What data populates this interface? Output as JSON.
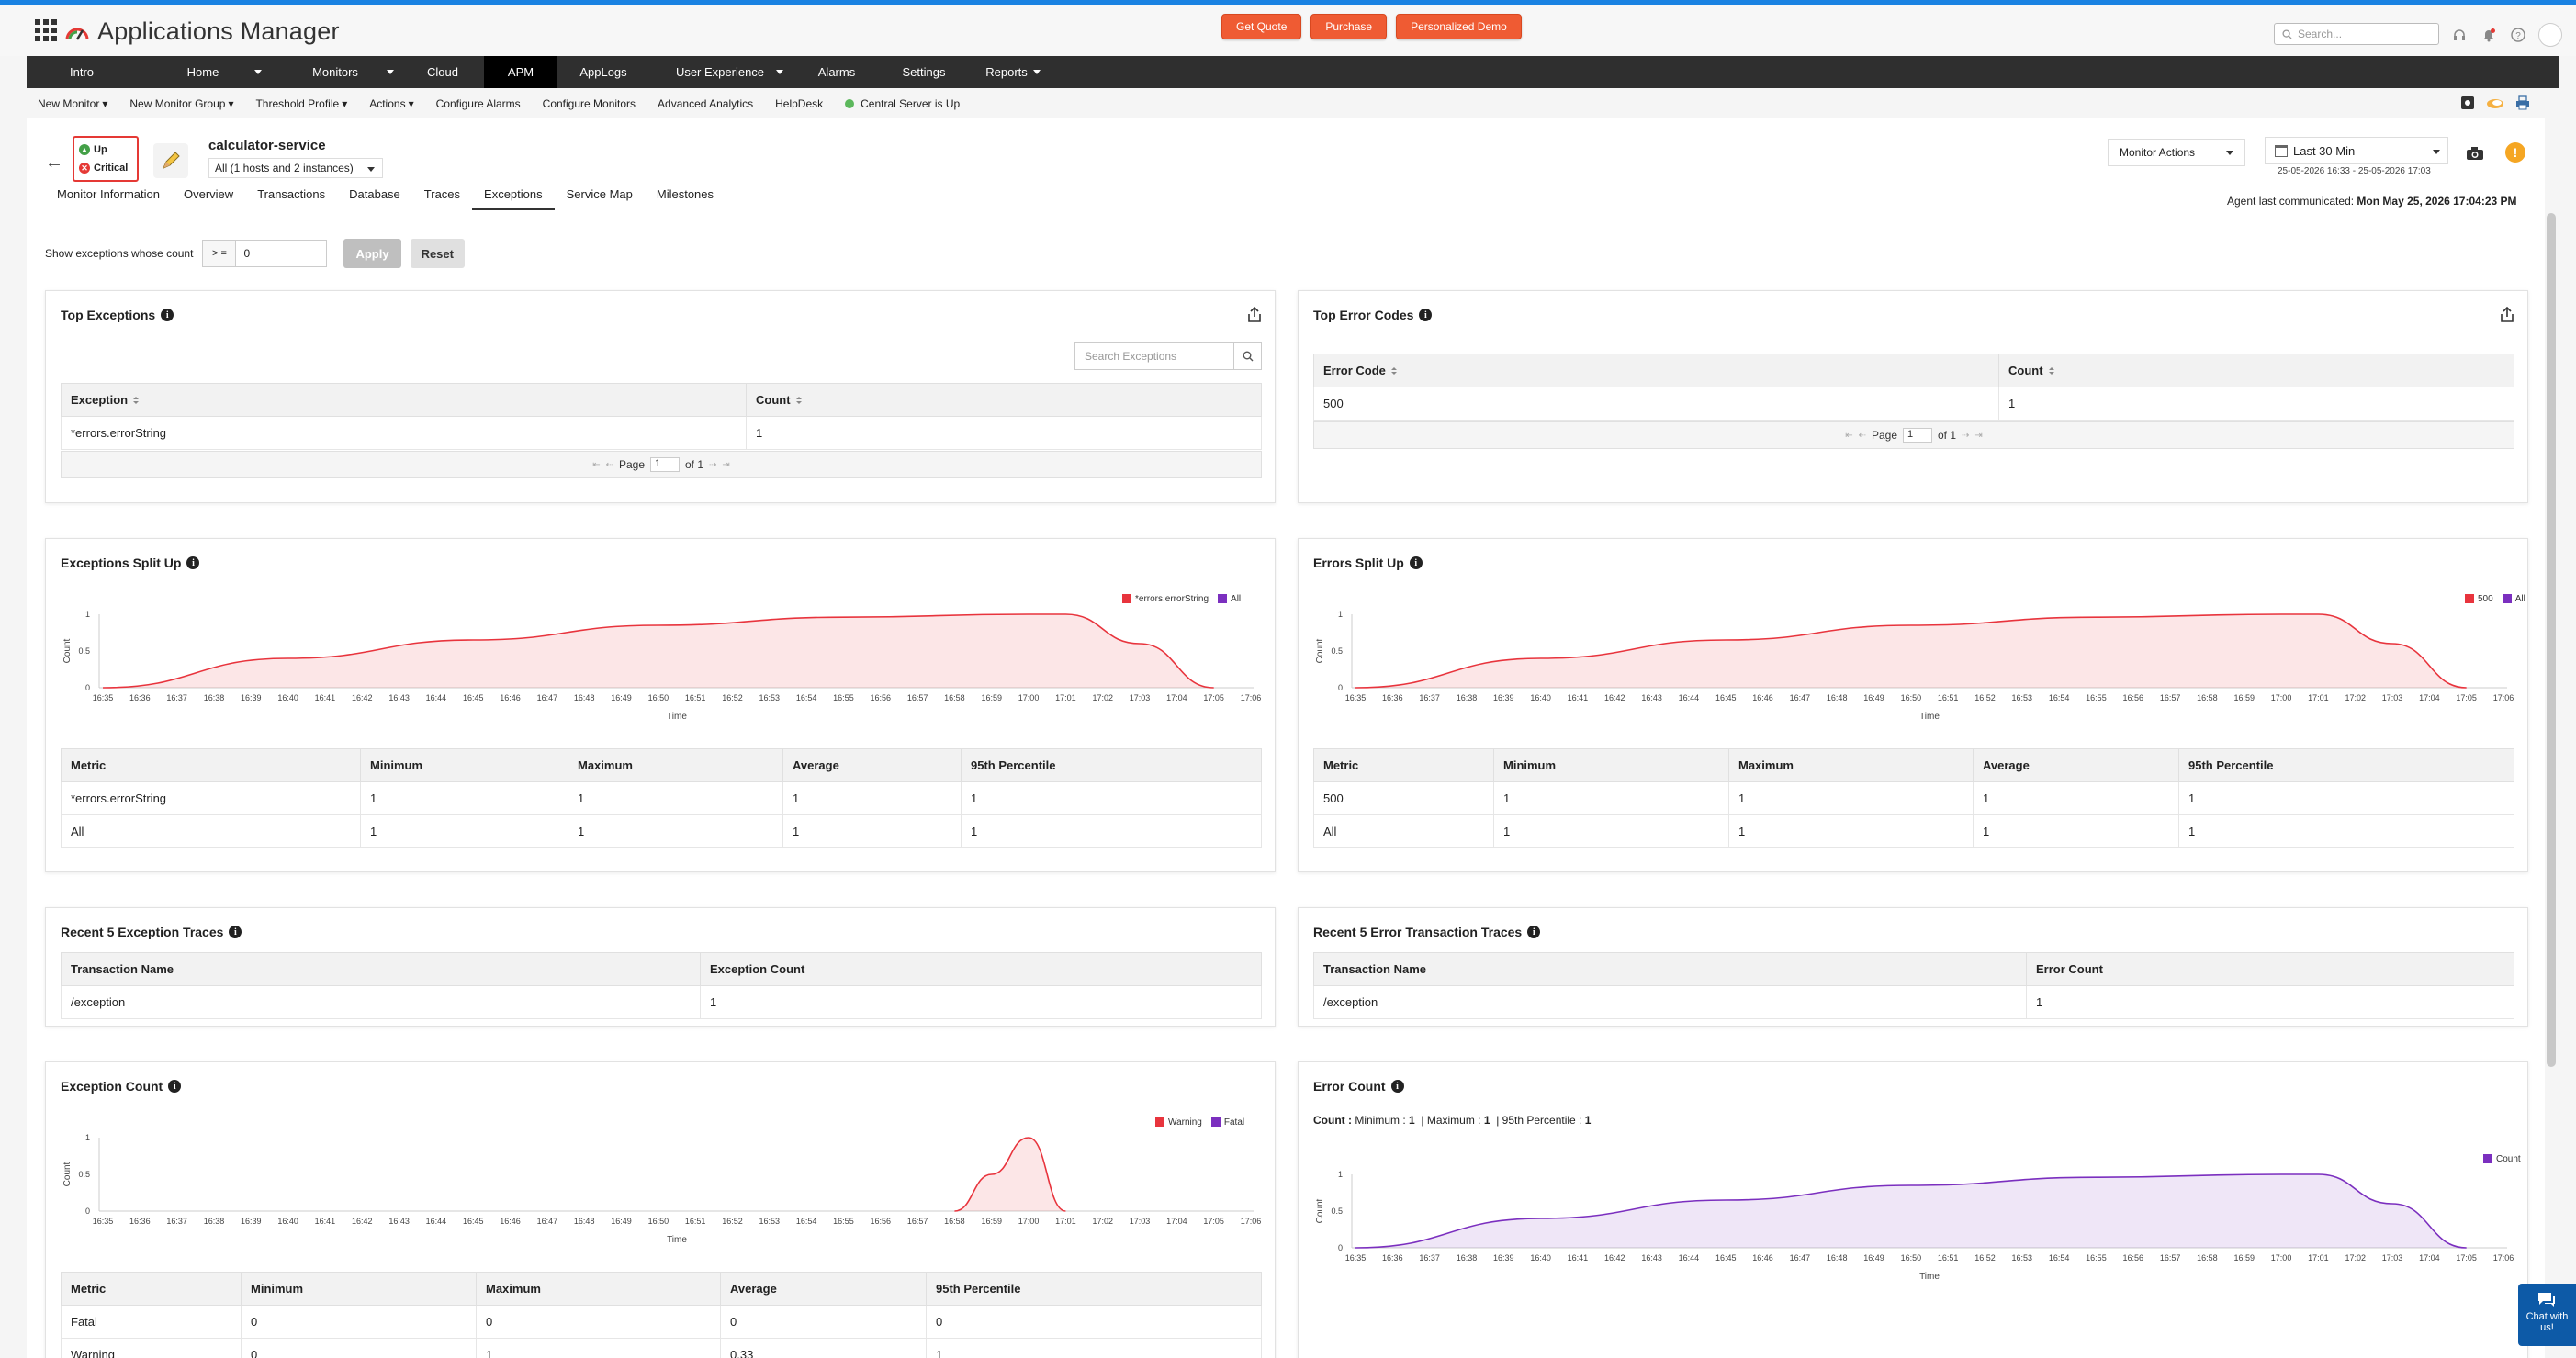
{
  "app": {
    "title": "Applications Manager",
    "search_placeholder": "Search..."
  },
  "header_buttons": [
    "Get Quote",
    "Purchase",
    "Personalized Demo"
  ],
  "nav": [
    {
      "label": "Intro",
      "w": 120,
      "caret": false
    },
    {
      "label": "Home",
      "w": 144,
      "caret": true
    },
    {
      "label": "Monitors",
      "w": 144,
      "caret": true
    },
    {
      "label": "Cloud",
      "w": 90,
      "caret": false
    },
    {
      "label": "APM",
      "w": 80,
      "caret": false,
      "active": true
    },
    {
      "label": "AppLogs",
      "w": 100,
      "caret": false
    },
    {
      "label": "User Experience",
      "w": 154,
      "caret": true
    },
    {
      "label": "Alarms",
      "w": 100,
      "caret": false
    },
    {
      "label": "Settings",
      "w": 90,
      "caret": false
    },
    {
      "label": "Reports",
      "w": 90,
      "caret": true
    }
  ],
  "subnav": [
    "New Monitor",
    "New Monitor Group",
    "Threshold Profile",
    "Actions",
    "Configure Alarms",
    "Configure Monitors",
    "Advanced Analytics",
    "HelpDesk",
    "Central Server is Up"
  ],
  "monitor": {
    "name": "calculator-service",
    "hosts": "All (1 hosts and 2 instances)",
    "status_up": "Up",
    "status_critical": "Critical",
    "monitor_actions": "Monitor Actions",
    "period": "Last 30 Min",
    "period_range": "25-05-2026 16:33 - 25-05-2026 17:03",
    "agent_label": "Agent last communicated:",
    "agent_time": "Mon May 25, 2026 17:04:23 PM"
  },
  "tabs": [
    "Monitor Information",
    "Overview",
    "Transactions",
    "Database",
    "Traces",
    "Exceptions",
    "Service Map",
    "Milestones"
  ],
  "active_tab": "Exceptions",
  "filter": {
    "label": "Show exceptions whose count",
    "operator": "> =",
    "value": "0",
    "apply": "Apply",
    "reset": "Reset"
  },
  "top_exceptions": {
    "title": "Top Exceptions",
    "search_placeholder": "Search Exceptions",
    "columns": [
      "Exception",
      "Count"
    ],
    "rows": [
      [
        "*errors.errorString",
        "1"
      ]
    ],
    "page_label": "Page",
    "page": "1",
    "of": "of 1"
  },
  "top_error_codes": {
    "title": "Top Error Codes",
    "columns": [
      "Error Code",
      "Count"
    ],
    "rows": [
      [
        "500",
        "1"
      ]
    ],
    "page_label": "Page",
    "page": "1",
    "of": "of 1"
  },
  "time_ticks": [
    "16:35",
    "16:36",
    "16:37",
    "16:38",
    "16:39",
    "16:40",
    "16:41",
    "16:42",
    "16:43",
    "16:44",
    "16:45",
    "16:46",
    "16:47",
    "16:48",
    "16:49",
    "16:50",
    "16:51",
    "16:52",
    "16:53",
    "16:54",
    "16:55",
    "16:56",
    "16:57",
    "16:58",
    "16:59",
    "17:00",
    "17:01",
    "17:02",
    "17:03",
    "17:04",
    "17:05",
    "17:06"
  ],
  "y_ticks": [
    "1",
    "0.5",
    "0"
  ],
  "x_label": "Time",
  "y_label": "Count",
  "exceptions_split": {
    "title": "Exceptions Split Up",
    "legend": [
      {
        "label": "*errors.errorString",
        "color": "#e8343d"
      },
      {
        "label": "All",
        "color": "#7b2fbf"
      }
    ],
    "metrics_header": [
      "Metric",
      "Minimum",
      "Maximum",
      "Average",
      "95th Percentile"
    ],
    "metrics": [
      [
        "*errors.errorString",
        "1",
        "1",
        "1",
        "1"
      ],
      [
        "All",
        "1",
        "1",
        "1",
        "1"
      ]
    ]
  },
  "errors_split": {
    "title": "Errors Split Up",
    "legend": [
      {
        "label": "500",
        "color": "#e8343d"
      },
      {
        "label": "All",
        "color": "#7b2fbf"
      }
    ],
    "metrics_header": [
      "Metric",
      "Minimum",
      "Maximum",
      "Average",
      "95th Percentile"
    ],
    "metrics": [
      [
        "500",
        "1",
        "1",
        "1",
        "1"
      ],
      [
        "All",
        "1",
        "1",
        "1",
        "1"
      ]
    ]
  },
  "recent_exception_traces": {
    "title": "Recent 5 Exception Traces",
    "columns": [
      "Transaction Name",
      "Exception Count"
    ],
    "rows": [
      [
        "/exception",
        "1"
      ]
    ]
  },
  "recent_error_traces": {
    "title": "Recent 5 Error Transaction Traces",
    "columns": [
      "Transaction Name",
      "Error Count"
    ],
    "rows": [
      [
        "/exception",
        "1"
      ]
    ]
  },
  "exception_count": {
    "title": "Exception Count",
    "legend": [
      {
        "label": "Warning",
        "color": "#e8343d"
      },
      {
        "label": "Fatal",
        "color": "#7b2fbf"
      }
    ],
    "metrics_header": [
      "Metric",
      "Minimum",
      "Maximum",
      "Average",
      "95th Percentile"
    ],
    "metrics": [
      [
        "Fatal",
        "0",
        "0",
        "0",
        "0"
      ],
      [
        "Warning",
        "0",
        "1",
        "0.33",
        "1"
      ]
    ]
  },
  "error_count": {
    "title": "Error Count",
    "stats": {
      "count_label": "Count :",
      "min_label": "Minimum :",
      "min": "1",
      "max_label": "| Maximum :",
      "max": "1",
      "p95_label": "| 95th Percentile :",
      "p95": "1"
    },
    "legend": [
      {
        "label": "Count",
        "color": "#7b2fbf"
      }
    ]
  },
  "chat": "Chat with us!",
  "chart_data": [
    {
      "type": "area",
      "title": "Exceptions Split Up",
      "xlabel": "Time",
      "ylabel": "Count",
      "ylim": [
        0,
        1
      ],
      "x": [
        "16:35",
        "16:40",
        "16:45",
        "16:50",
        "16:55",
        "17:00",
        "17:01",
        "17:03",
        "17:05"
      ],
      "series": [
        {
          "name": "*errors.errorString",
          "values": [
            0,
            0.4,
            0.65,
            0.85,
            0.96,
            1,
            1,
            0.6,
            0
          ]
        }
      ]
    },
    {
      "type": "area",
      "title": "Errors Split Up",
      "xlabel": "Time",
      "ylabel": "Count",
      "ylim": [
        0,
        1
      ],
      "x": [
        "16:35",
        "16:40",
        "16:45",
        "16:50",
        "16:55",
        "17:00",
        "17:01",
        "17:03",
        "17:05"
      ],
      "series": [
        {
          "name": "500",
          "values": [
            0,
            0.4,
            0.65,
            0.85,
            0.96,
            1,
            1,
            0.6,
            0
          ]
        }
      ]
    },
    {
      "type": "area",
      "title": "Exception Count",
      "xlabel": "Time",
      "ylabel": "Count",
      "ylim": [
        0,
        1
      ],
      "x": [
        "16:58",
        "16:59",
        "17:00",
        "17:01"
      ],
      "series": [
        {
          "name": "Warning",
          "values": [
            0,
            0.5,
            1,
            0
          ]
        }
      ]
    },
    {
      "type": "area",
      "title": "Error Count",
      "xlabel": "Time",
      "ylabel": "Count",
      "ylim": [
        0,
        1
      ],
      "x": [
        "16:35",
        "16:40",
        "16:45",
        "16:50",
        "16:55",
        "17:00",
        "17:01",
        "17:03",
        "17:05"
      ],
      "series": [
        {
          "name": "Count",
          "values": [
            0,
            0.4,
            0.65,
            0.85,
            0.96,
            1,
            1,
            0.6,
            0
          ]
        }
      ]
    }
  ]
}
